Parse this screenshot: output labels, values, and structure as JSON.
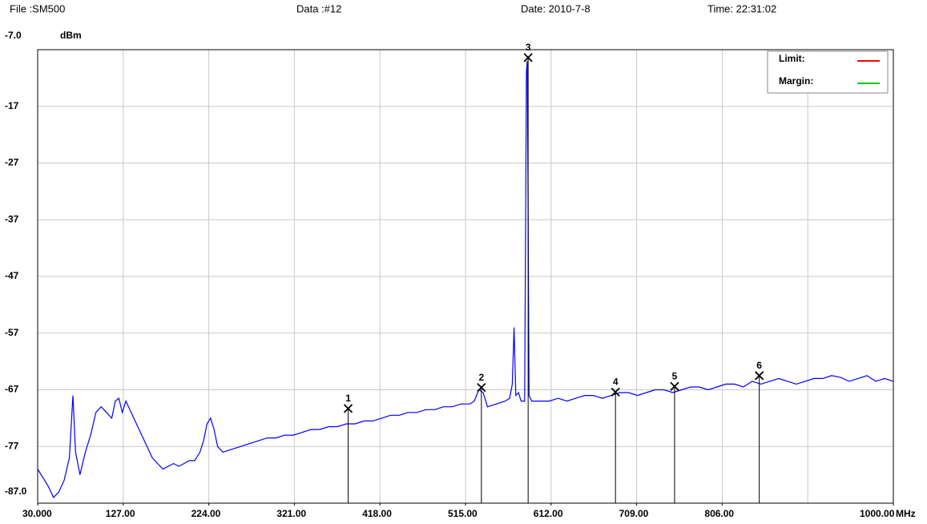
{
  "chart_data": {
    "type": "line",
    "header": [
      "File :SM500",
      "Data :#12",
      "Date: 2010-7-8",
      "Time: 22:31:02"
    ],
    "y_unit": "dBm",
    "x_unit": "MHz",
    "xlim": [
      30,
      1000
    ],
    "ylim": [
      -87,
      -7
    ],
    "xticks": [
      {
        "value": 30,
        "label": "30.000"
      },
      {
        "value": 127,
        "label": "127.00"
      },
      {
        "value": 224,
        "label": "224.00"
      },
      {
        "value": 321,
        "label": "321.00"
      },
      {
        "value": 418,
        "label": "418.00"
      },
      {
        "value": 515,
        "label": "515.00"
      },
      {
        "value": 612,
        "label": "612.00"
      },
      {
        "value": 709,
        "label": "709.00"
      },
      {
        "value": 806,
        "label": "806.00"
      },
      {
        "value": 1000,
        "label": "1000.00"
      }
    ],
    "xgrid": [
      127,
      224,
      321,
      418,
      515,
      612,
      709,
      806,
      903
    ],
    "yticks": [
      {
        "value": -7,
        "label": "-7.0"
      },
      -17,
      -27,
      -37,
      -47,
      -57,
      -67,
      -77,
      {
        "value": -87,
        "label": "-87.0"
      }
    ],
    "grid": true,
    "legend": [
      {
        "name": "Limit:",
        "color": "#ff0000"
      },
      {
        "name": "Margin:",
        "color": "#00cc00"
      }
    ],
    "legend_position": "upper right",
    "series": [
      {
        "color": "#0000ff",
        "x": [
          30,
          36,
          42,
          48,
          54,
          60,
          66,
          70,
          73,
          78,
          84,
          90,
          96,
          102,
          108,
          114,
          118,
          122,
          126,
          130,
          136,
          142,
          148,
          154,
          160,
          166,
          172,
          178,
          184,
          190,
          196,
          202,
          208,
          214,
          218,
          222,
          226,
          230,
          234,
          240,
          250,
          260,
          270,
          280,
          290,
          300,
          310,
          320,
          330,
          340,
          350,
          360,
          370,
          380,
          390,
          400,
          410,
          420,
          430,
          440,
          450,
          460,
          470,
          480,
          490,
          500,
          510,
          520,
          525,
          530,
          535,
          540,
          550,
          560,
          565,
          568,
          570,
          572,
          575,
          578,
          582,
          583,
          584,
          585,
          586,
          587,
          590,
          600,
          610,
          620,
          630,
          640,
          650,
          660,
          670,
          680,
          690,
          700,
          710,
          720,
          730,
          740,
          750,
          760,
          770,
          780,
          790,
          800,
          810,
          820,
          830,
          840,
          850,
          860,
          870,
          880,
          890,
          900,
          910,
          920,
          930,
          940,
          950,
          960,
          970,
          980,
          990,
          1000
        ],
        "values": [
          -81,
          -82.5,
          -84,
          -86,
          -85,
          -83,
          -79,
          -68,
          -78,
          -82,
          -78,
          -75,
          -71,
          -70,
          -71,
          -72,
          -69,
          -68.5,
          -71,
          -69,
          -71,
          -73,
          -75,
          -77,
          -79,
          -80,
          -81,
          -80.5,
          -80,
          -80.5,
          -80,
          -79.5,
          -79.5,
          -78,
          -76,
          -73,
          -72,
          -74,
          -77,
          -78,
          -77.5,
          -77,
          -76.5,
          -76,
          -75.5,
          -75.5,
          -75,
          -75,
          -74.5,
          -74,
          -74,
          -73.5,
          -73.5,
          -73,
          -73,
          -72.5,
          -72.5,
          -72,
          -71.5,
          -71.5,
          -71,
          -71,
          -70.5,
          -70.5,
          -70,
          -70,
          -69.5,
          -69.5,
          -69,
          -67,
          -67.5,
          -70,
          -69.5,
          -69,
          -68.5,
          -66,
          -56,
          -68,
          -67.5,
          -69,
          -69,
          -41,
          -11,
          -9,
          -37,
          -68,
          -69,
          -69,
          -69,
          -68.5,
          -69,
          -68.5,
          -68,
          -68,
          -68.5,
          -68,
          -67.5,
          -67.5,
          -68,
          -67.5,
          -67,
          -67,
          -67.5,
          -67,
          -66.5,
          -66.5,
          -67,
          -66.5,
          -66,
          -66,
          -66.5,
          -65.5,
          -66,
          -65.5,
          -65,
          -65.5,
          -66,
          -65.5,
          -65,
          -65,
          -64.5,
          -64.8,
          -65.5,
          -65,
          -64.5,
          -65.5,
          -65,
          -65.5
        ]
      }
    ],
    "markers": [
      {
        "label": "1",
        "x": 382,
        "y": -70.3
      },
      {
        "label": "2",
        "x": 533,
        "y": -66.6
      },
      {
        "label": "3",
        "x": 586,
        "y": -8.4
      },
      {
        "label": "4",
        "x": 685,
        "y": -67.4
      },
      {
        "label": "5",
        "x": 752,
        "y": -66.4
      },
      {
        "label": "6",
        "x": 848,
        "y": -64.5
      }
    ]
  }
}
